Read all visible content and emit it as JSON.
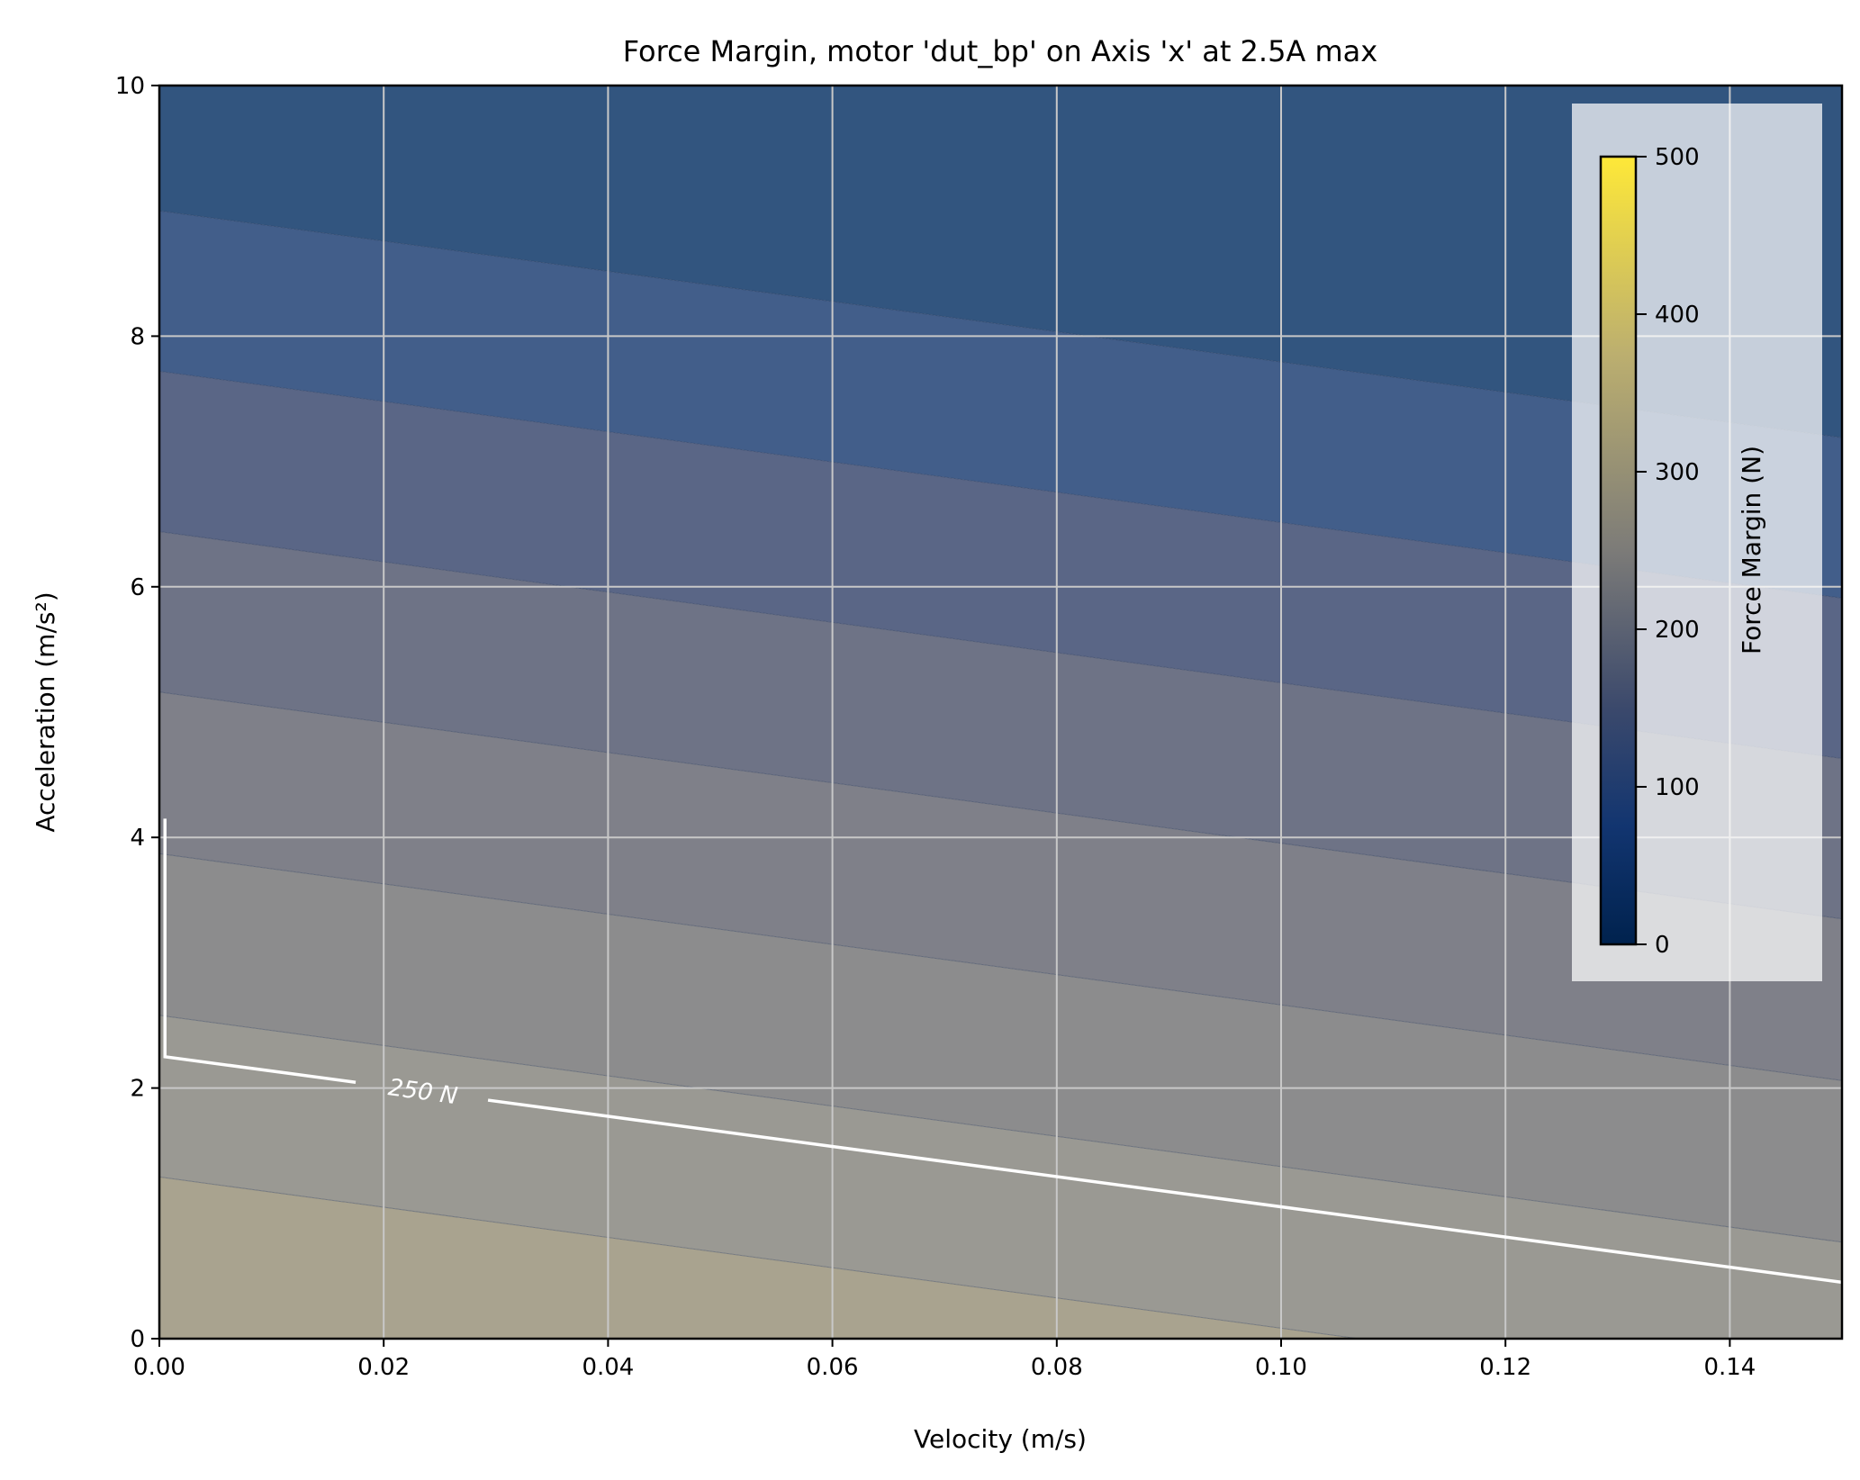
{
  "chart_data": {
    "type": "contour",
    "title": "Force Margin, motor 'dut_bp' on Axis 'x' at 2.5A max",
    "xlabel": "Velocity (m/s)",
    "ylabel": "Acceleration (m/s²)",
    "xlim": [
      0,
      0.15
    ],
    "ylim": [
      0,
      10
    ],
    "xticks": [
      "0.00",
      "0.02",
      "0.04",
      "0.06",
      "0.08",
      "0.10",
      "0.12",
      "0.14"
    ],
    "xtick_values": [
      0,
      0.02,
      0.04,
      0.06,
      0.08,
      0.1,
      0.12,
      0.14
    ],
    "yticks": [
      "0",
      "2",
      "4",
      "6",
      "8",
      "10"
    ],
    "ytick_values": [
      0,
      2,
      4,
      6,
      8,
      10
    ],
    "grid": true,
    "colormap": "cividis",
    "band_boundaries": [
      {
        "a_at_v0": 1.29,
        "a_at_v015": -0.52
      },
      {
        "a_at_v0": 2.58,
        "a_at_v015": 0.77
      },
      {
        "a_at_v0": 3.87,
        "a_at_v015": 2.06
      },
      {
        "a_at_v0": 5.16,
        "a_at_v015": 3.35
      },
      {
        "a_at_v0": 6.44,
        "a_at_v015": 4.63
      },
      {
        "a_at_v0": 7.72,
        "a_at_v015": 5.91
      },
      {
        "a_at_v0": 9.0,
        "a_at_v015": 7.19
      }
    ],
    "band_colors": [
      "#a9a38f",
      "#9a9993",
      "#8c8c8d",
      "#7f8089",
      "#6e7386",
      "#5a6686",
      "#425e8a",
      "#32557f"
    ],
    "contour_line": {
      "label": "250 N",
      "level": 250,
      "color": "#ffffff",
      "points": [
        [
          0.0005,
          4.15
        ],
        [
          0.0005,
          2.25
        ],
        [
          0.15,
          0.45
        ]
      ]
    },
    "colorbar": {
      "label": "Force Margin (N)",
      "range": [
        0,
        500
      ],
      "ticks": [
        "0",
        "100",
        "200",
        "300",
        "400",
        "500"
      ],
      "tick_values": [
        0,
        100,
        200,
        300,
        400,
        500
      ],
      "placement": "top-right inset"
    }
  }
}
